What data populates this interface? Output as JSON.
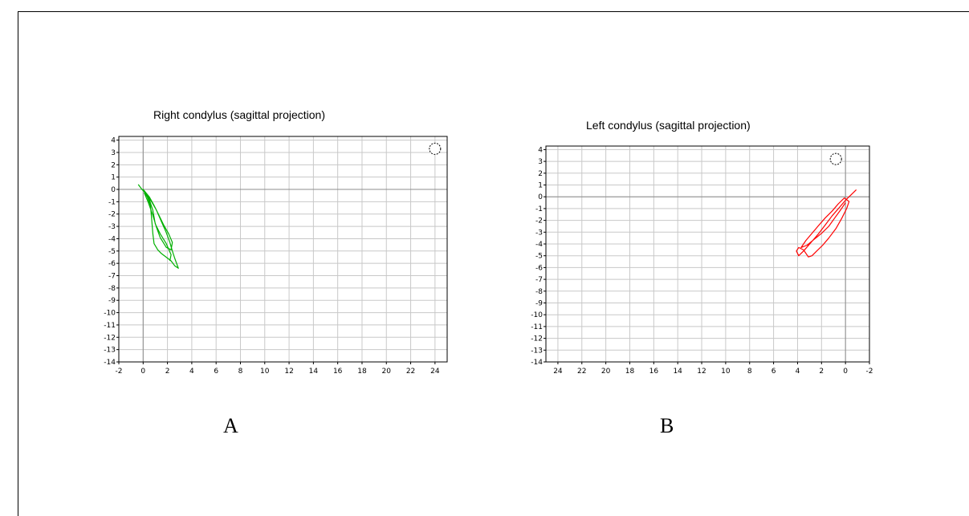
{
  "chart_data": [
    {
      "type": "line",
      "title": "Right condylus (sagittal projection)",
      "panel_label": "A",
      "xlim": [
        -2,
        25
      ],
      "ylim": [
        -14,
        4.3
      ],
      "x_ticks": [
        "-2",
        "0",
        "2",
        "4",
        "6",
        "8",
        "10",
        "12",
        "14",
        "16",
        "18",
        "20",
        "22",
        "24"
      ],
      "y_ticks": [
        "4",
        "3",
        "2",
        "1",
        "0",
        "-1",
        "-2",
        "-3",
        "-4",
        "-5",
        "-6",
        "-7",
        "-8",
        "-9",
        "-10",
        "-11",
        "-12",
        "-13",
        "-14"
      ],
      "grid": true,
      "x_reversed": false,
      "marker_symbol": {
        "x": 24,
        "y": 3.3
      },
      "series": [
        {
          "color": "#00b000",
          "points": [
            [
              -0.4,
              0.4
            ],
            [
              -0.1,
              0
            ],
            [
              0.3,
              -0.4
            ],
            [
              0.7,
              -1
            ],
            [
              1.1,
              -1.7
            ],
            [
              1.5,
              -2.6
            ],
            [
              1.9,
              -3.5
            ],
            [
              2.2,
              -4.3
            ],
            [
              2.4,
              -5
            ],
            [
              2.6,
              -5.6
            ],
            [
              2.9,
              -6.4
            ],
            [
              2.6,
              -6.2
            ],
            [
              2.3,
              -5.8
            ],
            [
              1.9,
              -5.5
            ],
            [
              1.5,
              -5.2
            ],
            [
              1.2,
              -4.9
            ],
            [
              0.9,
              -4.4
            ],
            [
              0.8,
              -3.6
            ],
            [
              0.7,
              -2.4
            ],
            [
              0.6,
              -1.3
            ],
            [
              0.3,
              -0.5
            ],
            [
              0,
              0
            ],
            [
              0.5,
              -0.6
            ],
            [
              0.9,
              -1.3
            ],
            [
              1.3,
              -2.1
            ],
            [
              1.7,
              -2.9
            ],
            [
              2.1,
              -3.6
            ],
            [
              2.4,
              -4.3
            ],
            [
              2.3,
              -4.9
            ],
            [
              1.9,
              -4.7
            ],
            [
              1.4,
              -3.9
            ],
            [
              1.1,
              -3.1
            ],
            [
              0.8,
              -2.1
            ],
            [
              0.4,
              -1
            ],
            [
              0.1,
              -0.3
            ],
            [
              0.5,
              -0.8
            ],
            [
              0.8,
              -1.7
            ],
            [
              1,
              -2.8
            ],
            [
              1.4,
              -3.6
            ],
            [
              1.9,
              -4.4
            ],
            [
              2.3,
              -5.3
            ],
            [
              2.2,
              -5.8
            ]
          ]
        }
      ]
    },
    {
      "type": "line",
      "title": "Left condylus (sagittal projection)",
      "panel_label": "B",
      "xlim": [
        25,
        -2
      ],
      "ylim": [
        -14,
        4.3
      ],
      "x_ticks": [
        "24",
        "22",
        "20",
        "18",
        "16",
        "14",
        "12",
        "10",
        "8",
        "6",
        "4",
        "2",
        "0",
        "-2"
      ],
      "y_ticks": [
        "4",
        "3",
        "2",
        "1",
        "0",
        "-1",
        "-2",
        "-3",
        "-4",
        "-5",
        "-6",
        "-7",
        "-8",
        "-9",
        "-10",
        "-11",
        "-12",
        "-13",
        "-14"
      ],
      "grid": true,
      "x_reversed": true,
      "marker_symbol": {
        "x": 0.8,
        "y": 3.2
      },
      "series": [
        {
          "color": "#ff0000",
          "points": [
            [
              -0.9,
              0.6
            ],
            [
              -0.5,
              0.2
            ],
            [
              0,
              -0.3
            ],
            [
              0.5,
              -0.9
            ],
            [
              1.1,
              -1.6
            ],
            [
              1.7,
              -2.4
            ],
            [
              2.3,
              -3.2
            ],
            [
              2.9,
              -3.9
            ],
            [
              3.5,
              -4.6
            ],
            [
              3.9,
              -5
            ],
            [
              4.1,
              -4.6
            ],
            [
              3.9,
              -4.3
            ],
            [
              3.5,
              -4.5
            ],
            [
              3.1,
              -5.1
            ],
            [
              2.8,
              -5
            ],
            [
              2.4,
              -4.6
            ],
            [
              1.9,
              -4.1
            ],
            [
              1.4,
              -3.5
            ],
            [
              0.8,
              -2.7
            ],
            [
              0.3,
              -1.8
            ],
            [
              -0.1,
              -1
            ],
            [
              -0.3,
              -0.4
            ],
            [
              0.1,
              -0.1
            ],
            [
              0.6,
              -0.6
            ],
            [
              1.1,
              -1.2
            ],
            [
              1.7,
              -1.8
            ],
            [
              2.3,
              -2.5
            ],
            [
              2.8,
              -3.1
            ],
            [
              3.3,
              -3.7
            ],
            [
              3.7,
              -4.3
            ],
            [
              3.2,
              -4.1
            ],
            [
              2.6,
              -3.6
            ],
            [
              2,
              -3.1
            ],
            [
              1.4,
              -2.5
            ],
            [
              0.9,
              -1.8
            ],
            [
              0.4,
              -1.1
            ],
            [
              0,
              -0.5
            ]
          ]
        }
      ]
    }
  ]
}
